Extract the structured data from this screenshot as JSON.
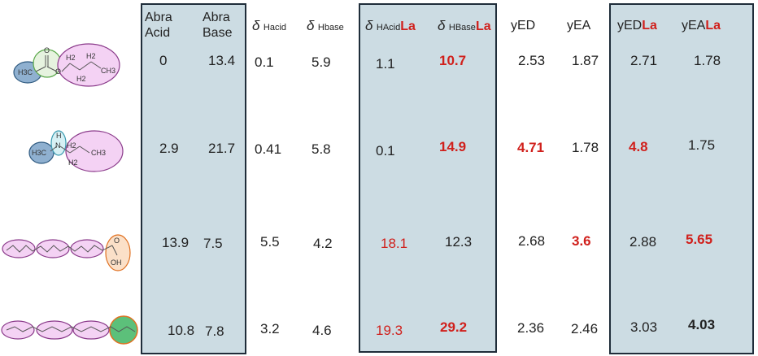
{
  "headers": {
    "abra_acid": [
      "Abra",
      "Acid"
    ],
    "abra_base": [
      "Abra",
      "Base"
    ],
    "delta_symbol": "δ",
    "h_acid_sub": "Hacid",
    "h_base_sub": "Hbase",
    "h_acid_la_sub": "HAcid",
    "h_base_la_sub": "HBase",
    "la": "La",
    "yed": "yED",
    "yea": "yEA",
    "yed_la": "yED",
    "yea_la": "yEA"
  },
  "rows": [
    {
      "abra_acid": "0",
      "abra_base": "13.4",
      "d_hacid": "0.1",
      "d_hbase": "5.9",
      "d_hacid_la": "1.1",
      "d_hbase_la": "10.7",
      "yed": "2.53",
      "yea": "1.87",
      "yed_la": "2.71",
      "yea_la": "1.78"
    },
    {
      "abra_acid": "2.9",
      "abra_base": "21.7",
      "d_hacid": "0.41",
      "d_hbase": "5.8",
      "d_hacid_la": "0.1",
      "d_hbase_la": "14.9",
      "yed": "4.71",
      "yea": "1.78",
      "yed_la": "4.8",
      "yea_la": "1.75"
    },
    {
      "abra_acid": "13.9",
      "abra_base": "7.5",
      "d_hacid": "5.5",
      "d_hbase": "4.2",
      "d_hacid_la": "18.1",
      "d_hbase_la": "12.3",
      "yed": "2.68",
      "yea": "3.6",
      "yed_la": "2.88",
      "yea_la": "5.65"
    },
    {
      "abra_acid": "10.8",
      "abra_base": "7.8",
      "d_hacid": "3.2",
      "d_hbase": "4.6",
      "d_hacid_la": "19.3",
      "d_hbase_la": "29.2",
      "yed": "2.36",
      "yea": "2.46",
      "yed_la": "3.03",
      "yea_la": "4.03"
    }
  ],
  "molecules": {
    "m1": {
      "h3c": "H3C",
      "o_top": "O",
      "o_mid": "O",
      "h2a": "H2",
      "h2b": "H2",
      "h2c": "H2",
      "ch3": "CH3"
    },
    "m2": {
      "h3c": "H3C",
      "h": "H",
      "n": "N",
      "h2a": "H2",
      "h2b": "H2",
      "ch3": "CH3"
    },
    "m3": {
      "o": "O",
      "oh": "OH"
    }
  },
  "colors": {
    "panel": "#ccdce3",
    "accent_red": "#d0201c",
    "panel_border": "#1f2d3a"
  }
}
